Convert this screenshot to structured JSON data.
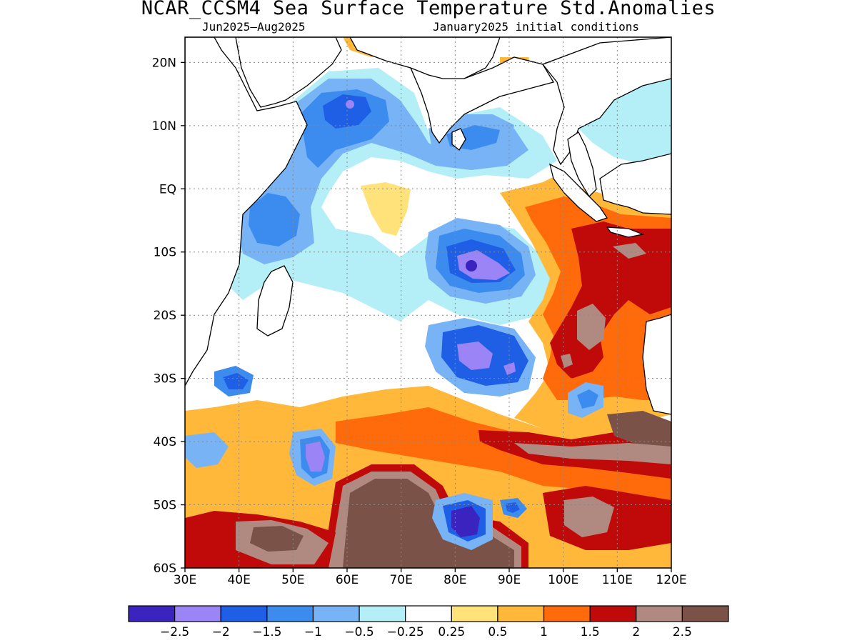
{
  "title": "NCAR_CCSM4 Sea Surface Temperature Std.Anomalies",
  "subtitle_left": "Jun2025–Aug2025",
  "subtitle_right": "January2025 initial conditions",
  "map": {
    "lon_range": [
      30,
      120
    ],
    "lat_range": [
      -60,
      24
    ],
    "x_tick_labels": [
      "30E",
      "40E",
      "50E",
      "60E",
      "70E",
      "80E",
      "90E",
      "100E",
      "110E",
      "120E"
    ],
    "x_tick_values": [
      30,
      40,
      50,
      60,
      70,
      80,
      90,
      100,
      110,
      120
    ],
    "y_tick_labels": [
      "20N",
      "10N",
      "EQ",
      "10S",
      "20S",
      "30S",
      "40S",
      "50S",
      "60S"
    ],
    "y_tick_values": [
      20,
      10,
      0,
      -10,
      -20,
      -30,
      -40,
      -50,
      -60
    ],
    "grid": true,
    "gridline_style": "dotted"
  },
  "colorbar": {
    "colors": [
      "#3b23c0",
      "#9b84f5",
      "#1e5fe6",
      "#3c8cf0",
      "#78b4f5",
      "#b4eef7",
      "#ffffff",
      "#ffe37a",
      "#ffb83a",
      "#ff6a0a",
      "#c00a0a",
      "#b08a80",
      "#7a5248"
    ],
    "tick_labels": [
      "−2.5",
      "−2",
      "−1.5",
      "−1",
      "−0.5",
      "−0.25",
      "0.25",
      "0.5",
      "1",
      "1.5",
      "2",
      "2.5"
    ],
    "tick_values": [
      -2.5,
      -2,
      -1.5,
      -1,
      -0.5,
      -0.25,
      0.25,
      0.5,
      1,
      1.5,
      2,
      2.5
    ]
  },
  "chart_data": {
    "type": "heatmap",
    "title": "NCAR_CCSM4 Sea Surface Temperature Std.Anomalies",
    "subtitle": [
      "Jun2025–Aug2025",
      "January2025 initial conditions"
    ],
    "x_range": [
      30,
      120
    ],
    "y_range": [
      -60,
      24
    ],
    "levels": [
      -2.5,
      -2,
      -1.5,
      -1,
      -0.5,
      -0.25,
      0.25,
      0.5,
      1,
      1.5,
      2,
      2.5
    ],
    "anomaly_features": [
      {
        "lon": 58,
        "lat": 12,
        "value": -2.0
      },
      {
        "lon": 40,
        "lat": -6,
        "value": -1.2
      },
      {
        "lon": 83,
        "lat": -12,
        "value": -2.5
      },
      {
        "lon": 83,
        "lat": -25,
        "value": -2.0
      },
      {
        "lon": 54,
        "lat": -43,
        "value": -2.0
      },
      {
        "lon": 82,
        "lat": -52,
        "value": -2.5
      },
      {
        "lon": 40,
        "lat": -30,
        "value": -1.5
      },
      {
        "lon": 67,
        "lat": 2,
        "value": 0.5
      },
      {
        "lon": 113,
        "lat": -14,
        "value": 2.0
      },
      {
        "lon": 105,
        "lat": -22,
        "value": 2.5
      },
      {
        "lon": 113,
        "lat": -40,
        "value": 2.5
      },
      {
        "lon": 70,
        "lat": -53,
        "value": 2.5
      },
      {
        "lon": 42,
        "lat": -55,
        "value": 2.5
      },
      {
        "lon": 105,
        "lat": -53,
        "value": 2.5
      }
    ]
  }
}
